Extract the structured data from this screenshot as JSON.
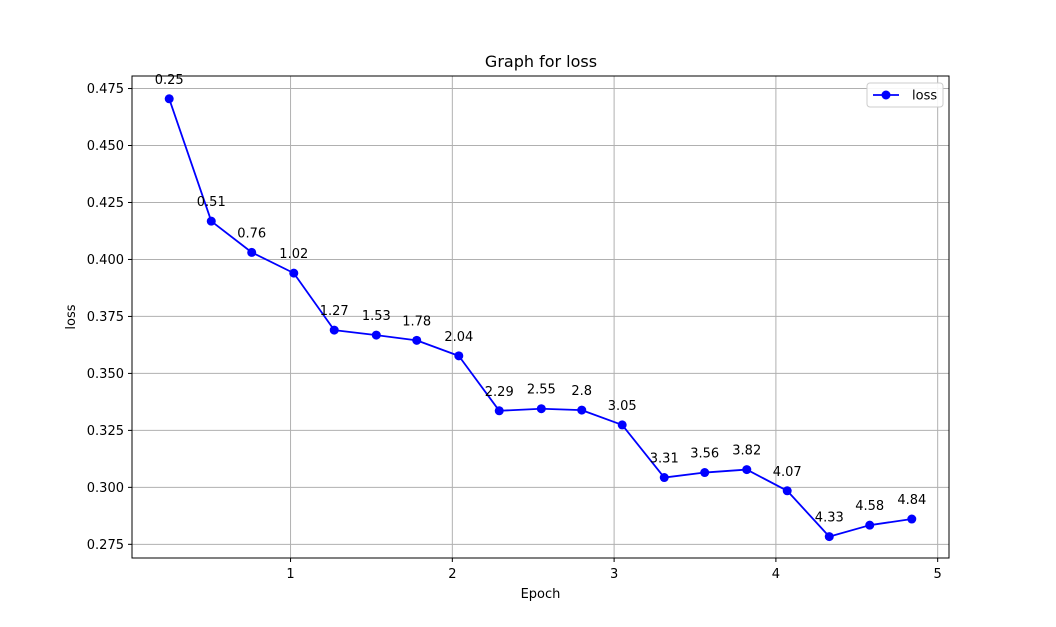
{
  "chart_data": {
    "type": "line",
    "title": "Graph for loss",
    "xlabel": "Epoch",
    "ylabel": "loss",
    "xlim": [
      0.02,
      5.07
    ],
    "ylim": [
      0.269,
      0.4805
    ],
    "xticks": [
      1,
      2,
      3,
      4,
      5
    ],
    "yticks": [
      0.275,
      0.3,
      0.325,
      0.35,
      0.375,
      0.4,
      0.425,
      0.45,
      0.475
    ],
    "ytick_labels": [
      "0.275",
      "0.300",
      "0.325",
      "0.350",
      "0.375",
      "0.400",
      "0.425",
      "0.450",
      "0.475"
    ],
    "xtick_labels": [
      "1",
      "2",
      "3",
      "4",
      "5"
    ],
    "grid": true,
    "legend_position": "top-right",
    "series": [
      {
        "name": "loss",
        "color": "#0000ff",
        "marker": "circle",
        "x": [
          0.25,
          0.51,
          0.76,
          1.02,
          1.27,
          1.53,
          1.78,
          2.04,
          2.29,
          2.55,
          2.8,
          3.05,
          3.31,
          3.56,
          3.82,
          4.07,
          4.33,
          4.58,
          4.84
        ],
        "y": [
          0.4705,
          0.4168,
          0.4031,
          0.394,
          0.369,
          0.3668,
          0.3645,
          0.3577,
          0.3336,
          0.3345,
          0.3339,
          0.3274,
          0.3043,
          0.3065,
          0.3078,
          0.2985,
          0.2784,
          0.2834,
          0.2861
        ],
        "point_labels": [
          "0.25",
          "0.51",
          "0.76",
          "1.02",
          "1.27",
          "1.53",
          "1.78",
          "2.04",
          "2.29",
          "2.55",
          "2.8",
          "3.05",
          "3.31",
          "3.56",
          "3.82",
          "4.07",
          "4.33",
          "4.58",
          "4.84"
        ]
      }
    ]
  }
}
